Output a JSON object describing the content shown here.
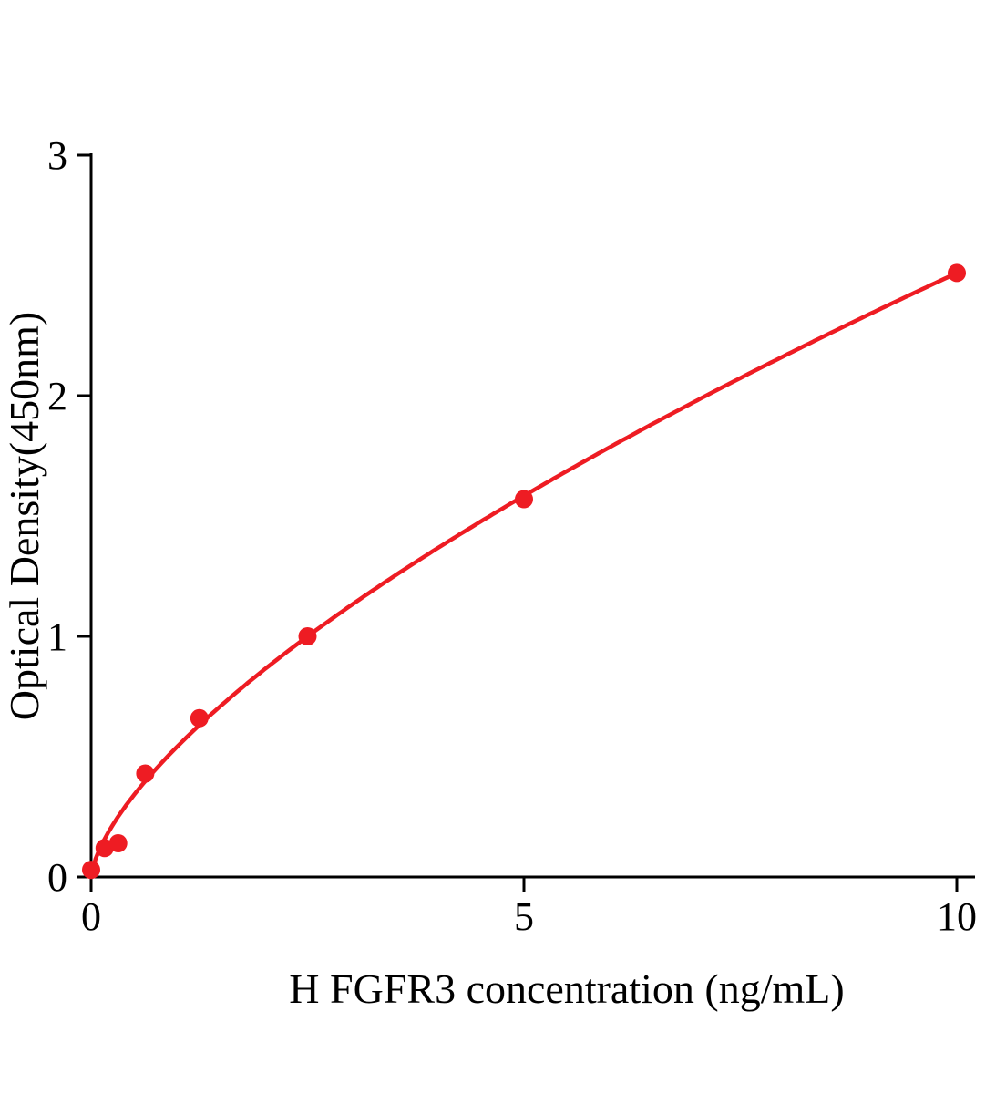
{
  "figure": {
    "background": "#ffffff"
  },
  "chart_data": {
    "type": "scatter",
    "title": "",
    "xlabel": "H FGFR3 concentration (ng/mL)",
    "ylabel": "Optical Density(450nm)",
    "x": [
      0,
      0.156,
      0.313,
      0.625,
      1.25,
      2.5,
      5,
      10
    ],
    "y": [
      0.03,
      0.12,
      0.14,
      0.43,
      0.66,
      1.0,
      1.57,
      2.51
    ],
    "xlim": [
      0,
      10
    ],
    "ylim": [
      0,
      3
    ],
    "x_ticks": [
      0,
      5,
      10
    ],
    "y_ticks": [
      0,
      1,
      2,
      3
    ],
    "grid": false,
    "legend": "none",
    "marker": "circle",
    "line_color": "#ee1c23",
    "point_color": "#ee1c23",
    "axis_color": "#000000",
    "fit": {
      "type": "power",
      "a": 0.544,
      "b": 0.664,
      "description": "Fitted standard curve: OD = 0.544 x concentration^0.664"
    }
  }
}
